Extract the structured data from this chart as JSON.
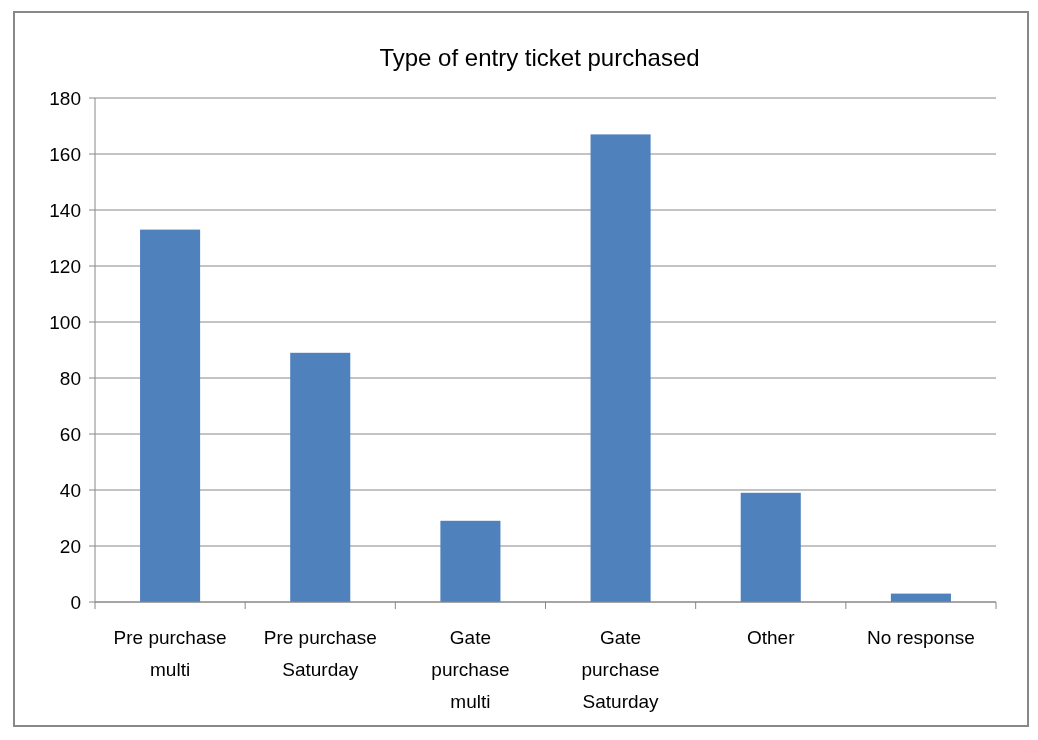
{
  "chart_data": {
    "type": "bar",
    "title": "Type of entry ticket purchased",
    "categories": [
      "Pre purchase multi",
      "Pre purchase Saturday",
      "Gate purchase multi",
      "Gate purchase Saturday",
      "Other",
      "No response"
    ],
    "values": [
      133,
      89,
      29,
      167,
      39,
      3
    ],
    "color": "#4f81bd",
    "ylim": [
      0,
      180
    ],
    "yticks": [
      0,
      20,
      40,
      60,
      80,
      100,
      120,
      140,
      160,
      180
    ],
    "grid": true
  }
}
